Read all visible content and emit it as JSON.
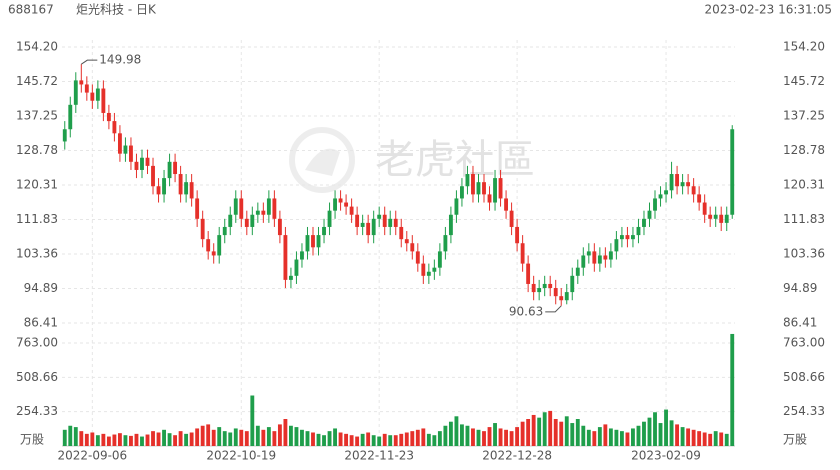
{
  "symbol": "688167",
  "title": "炬光科技 - 日K",
  "timestamp": "2023-02-23 16:31:05",
  "watermark": "老虎社區",
  "chart_data": {
    "type": "candlestick",
    "categories": [
      null,
      null,
      null,
      null,
      null,
      "2022-09-06",
      null,
      null,
      null,
      null,
      null,
      null,
      null,
      null,
      null,
      null,
      null,
      null,
      null,
      null,
      null,
      null,
      null,
      null,
      null,
      null,
      null,
      null,
      null,
      null,
      null,
      null,
      "2022-10-19",
      null,
      null,
      null,
      null,
      null,
      null,
      null,
      null,
      null,
      null,
      null,
      null,
      null,
      null,
      null,
      null,
      null,
      null,
      null,
      null,
      null,
      null,
      null,
      null,
      "2022-11-23",
      null,
      null,
      null,
      null,
      null,
      null,
      null,
      null,
      null,
      null,
      null,
      null,
      null,
      null,
      null,
      null,
      null,
      null,
      null,
      null,
      null,
      null,
      null,
      null,
      "2022-12-28",
      null,
      null,
      null,
      null,
      null,
      null,
      null,
      null,
      null,
      null,
      null,
      null,
      null,
      null,
      null,
      null,
      null,
      null,
      null,
      null,
      null,
      null,
      null,
      null,
      null,
      null,
      "2023-02-09",
      null,
      null,
      null,
      null,
      null,
      null,
      null,
      null,
      null,
      null,
      null,
      null
    ],
    "open": [
      131,
      134,
      140,
      146,
      145,
      143,
      141,
      144,
      138,
      136,
      133,
      128,
      130,
      126,
      124,
      127,
      125,
      120,
      118,
      122,
      126,
      123,
      118,
      121,
      117,
      112,
      107,
      104,
      103,
      108,
      110,
      113,
      117,
      112,
      110,
      113,
      114,
      113,
      117,
      112,
      108,
      97,
      98,
      102,
      104,
      108,
      105,
      108,
      110,
      114,
      117,
      116,
      115,
      113,
      110,
      111,
      108,
      112,
      113,
      110,
      112,
      110,
      107,
      106,
      104,
      101,
      98,
      99,
      100,
      104,
      108,
      113,
      117,
      120,
      123,
      118,
      121,
      118,
      116,
      122,
      117,
      114,
      110,
      106,
      101,
      96,
      94,
      95,
      96,
      95,
      93,
      92,
      94,
      98,
      100,
      103,
      104,
      101,
      103,
      102,
      104,
      107,
      108,
      107,
      108,
      110,
      112,
      114,
      117,
      118,
      119,
      123,
      120,
      121,
      120,
      118,
      116,
      113,
      112,
      113,
      111,
      113
    ],
    "high": [
      136,
      142,
      148,
      149.98,
      147,
      145,
      146,
      146,
      140,
      138,
      135,
      132,
      132,
      128,
      129,
      129,
      127,
      122,
      124,
      128,
      128,
      125,
      123,
      123,
      119,
      114,
      109,
      106,
      110,
      112,
      115,
      119,
      119,
      114,
      115,
      116,
      116,
      119,
      119,
      114,
      110,
      100,
      104,
      106,
      110,
      110,
      110,
      112,
      116,
      119,
      119,
      118,
      117,
      115,
      113,
      113,
      114,
      115,
      115,
      114,
      114,
      112,
      109,
      108,
      106,
      103,
      101,
      102,
      106,
      110,
      115,
      119,
      122,
      125,
      125,
      123,
      123,
      120,
      124,
      124,
      119,
      116,
      112,
      108,
      103,
      98,
      97,
      98,
      98,
      97,
      95,
      96,
      100,
      102,
      105,
      106,
      106,
      105,
      105,
      106,
      109,
      110,
      110,
      110,
      112,
      114,
      116,
      119,
      120,
      121,
      126,
      125,
      123,
      123,
      122,
      120,
      118,
      115,
      115,
      115,
      115,
      135
    ],
    "low": [
      129,
      132,
      138,
      143,
      141,
      139,
      139,
      136,
      134,
      131,
      126,
      126,
      124,
      122,
      122,
      123,
      118,
      116,
      116,
      120,
      121,
      116,
      116,
      115,
      110,
      105,
      102,
      101,
      101,
      106,
      108,
      111,
      110,
      108,
      108,
      111,
      111,
      111,
      110,
      106,
      95,
      95,
      96,
      100,
      102,
      103,
      103,
      106,
      108,
      112,
      114,
      113,
      111,
      108,
      108,
      106,
      106,
      110,
      108,
      108,
      108,
      105,
      104,
      102,
      99,
      96,
      96,
      97,
      98,
      102,
      106,
      111,
      115,
      118,
      116,
      116,
      116,
      114,
      114,
      115,
      112,
      108,
      104,
      99,
      94,
      92,
      92,
      93,
      93,
      91,
      90.63,
      91,
      92,
      96,
      98,
      101,
      99,
      99,
      100,
      100,
      102,
      105,
      105,
      105,
      106,
      108,
      110,
      112,
      115,
      116,
      117,
      118,
      118,
      118,
      116,
      114,
      111,
      110,
      110,
      109,
      109,
      112
    ],
    "close": [
      134,
      140,
      146,
      145,
      143,
      141,
      144,
      138,
      136,
      133,
      128,
      130,
      126,
      124,
      127,
      125,
      120,
      118,
      122,
      126,
      123,
      118,
      121,
      117,
      112,
      107,
      104,
      103,
      108,
      110,
      113,
      117,
      112,
      110,
      113,
      114,
      113,
      117,
      112,
      108,
      97,
      98,
      102,
      104,
      108,
      105,
      108,
      110,
      114,
      117,
      116,
      115,
      113,
      110,
      111,
      108,
      112,
      113,
      110,
      112,
      110,
      107,
      106,
      104,
      101,
      98,
      99,
      100,
      104,
      108,
      113,
      117,
      120,
      123,
      118,
      121,
      118,
      116,
      122,
      117,
      114,
      110,
      106,
      101,
      96,
      94,
      95,
      96,
      95,
      93,
      92,
      94,
      98,
      100,
      103,
      104,
      101,
      103,
      102,
      104,
      107,
      108,
      107,
      108,
      110,
      112,
      114,
      117,
      118,
      119,
      123,
      120,
      121,
      120,
      118,
      116,
      113,
      112,
      113,
      111,
      113,
      134
    ],
    "volume": [
      120,
      150,
      140,
      110,
      90,
      100,
      80,
      90,
      70,
      85,
      95,
      80,
      75,
      90,
      70,
      85,
      110,
      100,
      120,
      95,
      80,
      110,
      90,
      100,
      130,
      150,
      160,
      120,
      140,
      110,
      100,
      130,
      120,
      110,
      374,
      150,
      120,
      140,
      110,
      160,
      200,
      150,
      140,
      120,
      110,
      100,
      90,
      80,
      110,
      130,
      100,
      90,
      80,
      70,
      90,
      100,
      80,
      70,
      90,
      80,
      80,
      90,
      100,
      110,
      120,
      130,
      90,
      80,
      110,
      150,
      180,
      220,
      160,
      150,
      130,
      120,
      110,
      140,
      170,
      130,
      120,
      110,
      140,
      180,
      200,
      230,
      210,
      250,
      260,
      200,
      180,
      220,
      170,
      200,
      150,
      120,
      110,
      140,
      160,
      130,
      120,
      110,
      100,
      130,
      150,
      180,
      210,
      250,
      170,
      270,
      190,
      160,
      140,
      130,
      120,
      110,
      100,
      90,
      110,
      100,
      90,
      830
    ],
    "up_color": "#1f9e4b",
    "down_color": "#e5302a",
    "ylim": [
      86.41,
      154.2
    ],
    "yticks": [
      {
        "value": 154.2,
        "label": "154.20"
      },
      145.72,
      137.25,
      128.78,
      120.31,
      111.83,
      103.36,
      94.89,
      86.41
    ],
    "y2lim": [
      0,
      763
    ],
    "y2ticks": [
      {
        "value": 763,
        "label": "763.00"
      },
      508.66,
      254.33
    ],
    "volume_unit": "万股",
    "grid": true
  }
}
